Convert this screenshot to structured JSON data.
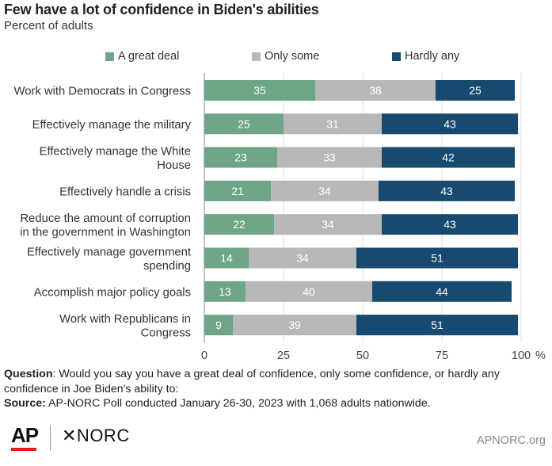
{
  "title": "Few have a lot of confidence in Biden's abilities",
  "subtitle": "Percent of adults",
  "chart_data": {
    "type": "bar",
    "orientation": "horizontal",
    "stacked": true,
    "categories": [
      "Work with Democrats in Congress",
      "Effectively manage the military",
      "Effectively manage the White House",
      "Effectively handle a crisis",
      "Reduce the amount of corruption in the government in Washington",
      "Effectively manage government spending",
      "Accomplish major policy goals",
      "Work with Republicans in Congress"
    ],
    "category_lines": [
      [
        "Work with Democrats in Congress"
      ],
      [
        "Effectively manage the military"
      ],
      [
        "Effectively manage the White",
        "House"
      ],
      [
        "Effectively handle a crisis"
      ],
      [
        "Reduce the amount of corruption",
        "in the government in Washington"
      ],
      [
        "Effectively manage government",
        "spending"
      ],
      [
        "Accomplish major policy goals"
      ],
      [
        "Work with Republicans in",
        "Congress"
      ]
    ],
    "series": [
      {
        "name": "A great deal",
        "color": "#6fa587",
        "label_color": "#ffffff",
        "values": [
          35,
          25,
          23,
          21,
          22,
          14,
          13,
          9
        ]
      },
      {
        "name": "Only some",
        "color": "#b8b8b8",
        "label_color": "#ffffff",
        "values": [
          38,
          31,
          33,
          34,
          34,
          34,
          40,
          39
        ]
      },
      {
        "name": "Hardly any",
        "color": "#174a6e",
        "label_color": "#ffffff",
        "values": [
          25,
          43,
          42,
          43,
          43,
          51,
          44,
          51
        ]
      }
    ],
    "xlim": [
      0,
      100
    ],
    "xticks": [
      "0",
      "25",
      "50",
      "75",
      "100"
    ],
    "x_unit": "%",
    "grid": "vertical",
    "legend_position": "top"
  },
  "footnote": {
    "question_label": "Question",
    "question_text": ": Would you say you have a great deal of confidence, only some confidence, or hardly any confidence in Joe Biden's ability to:",
    "source_label": "Source:",
    "source_text": " AP-NORC Poll conducted January 26-30, 2023 with 1,068 adults nationwide."
  },
  "branding": {
    "ap_logo": "AP",
    "norc_logo": "✕NORC",
    "url": "APNORC.org"
  }
}
